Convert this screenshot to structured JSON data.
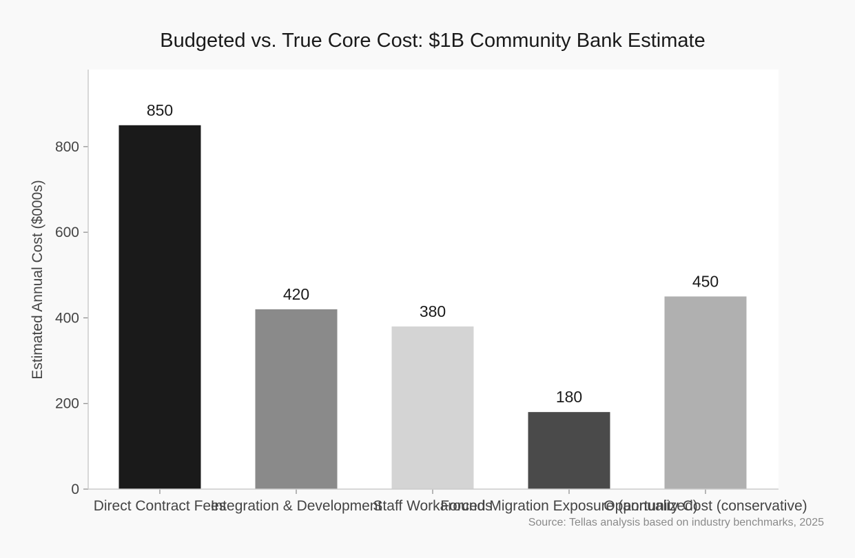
{
  "chart_data": {
    "type": "bar",
    "title": "Budgeted vs. True Core Cost: $1B Community Bank Estimate",
    "xlabel": "",
    "ylabel": "Estimated Annual Cost ($000s)",
    "ylim": [
      0,
      980
    ],
    "yticks": [
      0,
      200,
      400,
      600,
      800
    ],
    "grid": false,
    "categories": [
      "Direct Contract Fees",
      "Integration & Development",
      "Staff Workarounds",
      "Forced Migration Exposure (annualized)",
      "Opportunity Cost (conservative)"
    ],
    "values": [
      850,
      420,
      380,
      180,
      450
    ],
    "value_labels": [
      "850",
      "420",
      "380",
      "180",
      "450"
    ],
    "colors": [
      "#1a1a1a",
      "#8a8a8a",
      "#d4d4d4",
      "#4a4a4a",
      "#b0b0b0"
    ],
    "source": "Source: Tellas analysis based on industry benchmarks, 2025"
  }
}
